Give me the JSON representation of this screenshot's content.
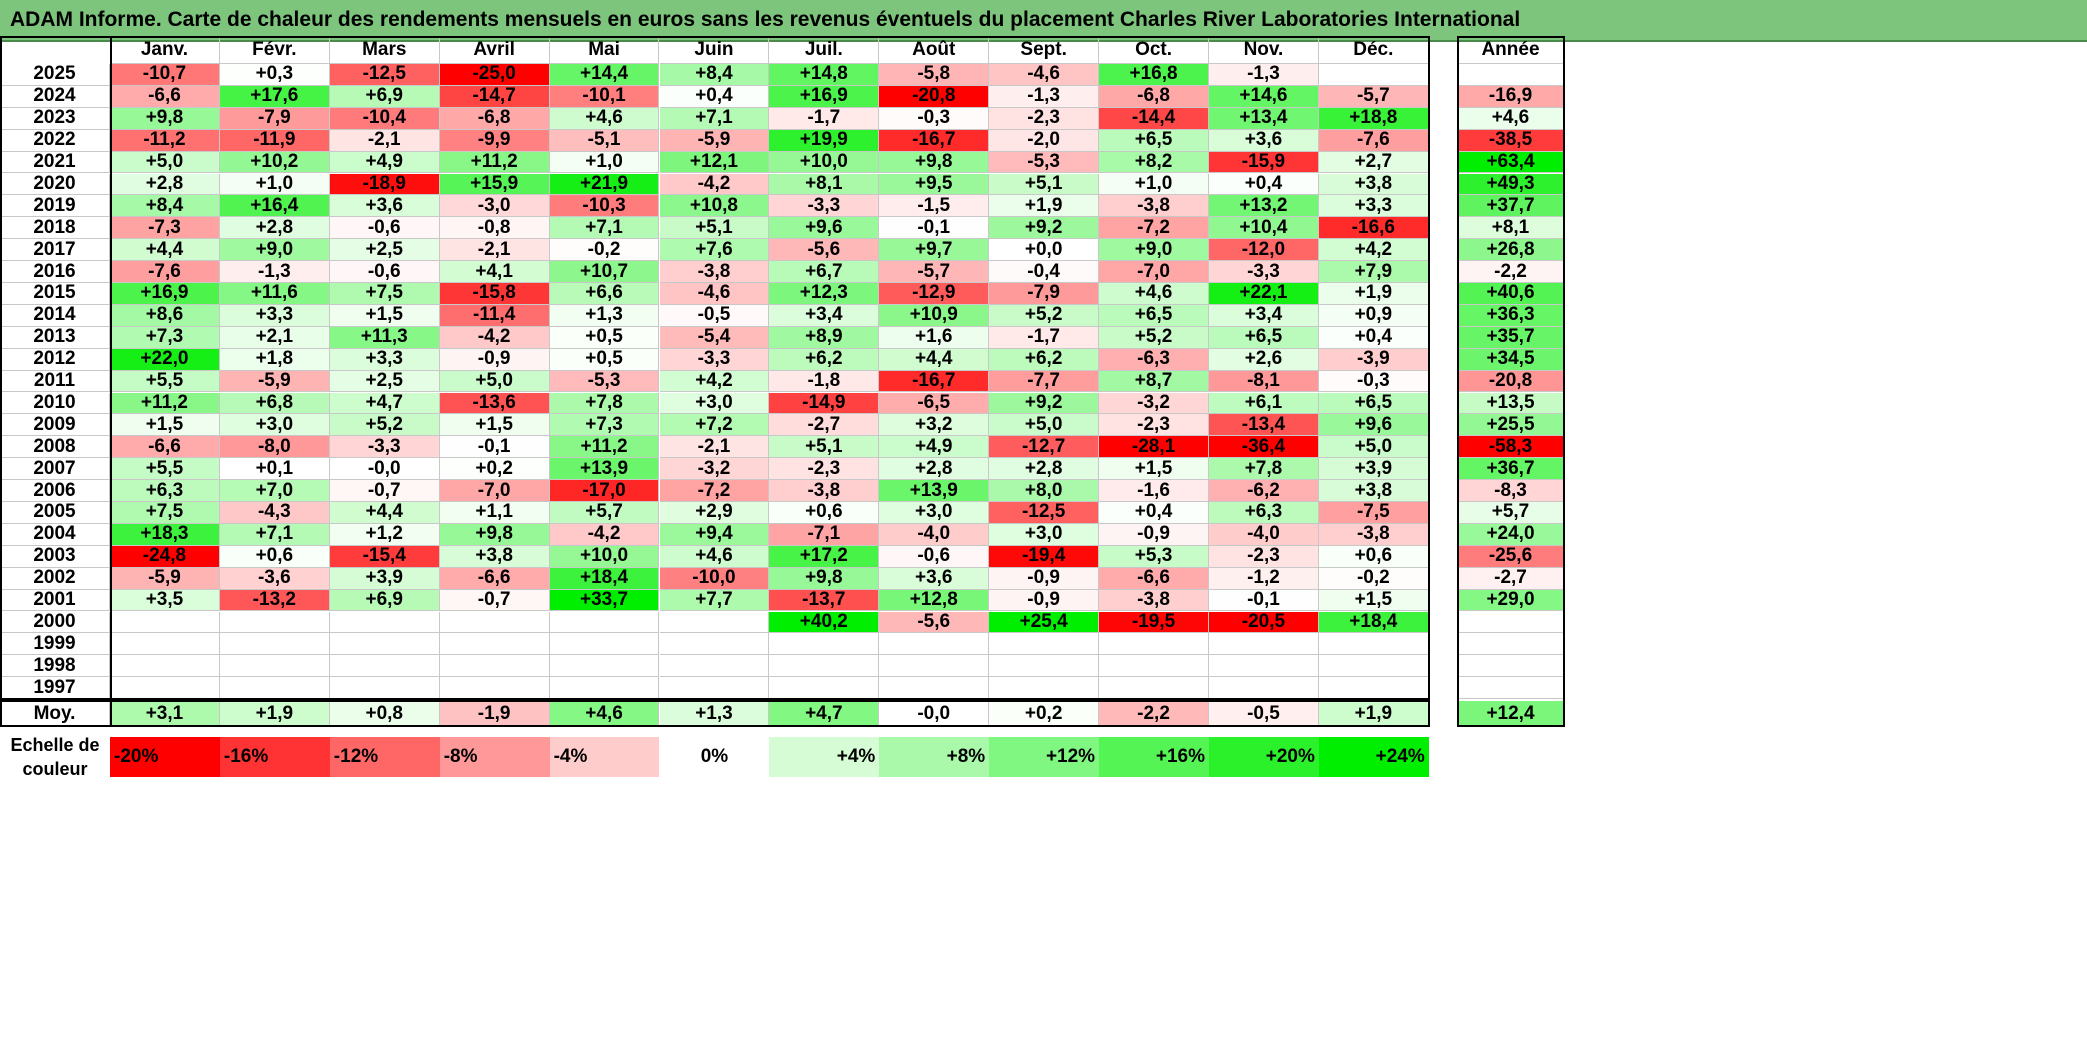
{
  "title": "ADAM Informe. Carte de chaleur des rendements mensuels en euros sans les revenus éventuels du placement Charles River Laboratories International",
  "chart_data": {
    "type": "heatmap",
    "title": "ADAM Informe. Carte de chaleur des rendements mensuels en euros sans les revenus éventuels du placement Charles River Laboratories International",
    "columns": [
      "Janv.",
      "Févr.",
      "Mars",
      "Avril",
      "Mai",
      "Juin",
      "Juil.",
      "Août",
      "Sept.",
      "Oct.",
      "Nov.",
      "Déc."
    ],
    "annual_label": "Année",
    "rows": [
      {
        "year": "2025",
        "values": [
          "-10,7",
          "+0,3",
          "-12,5",
          "-25,0",
          "+14,4",
          "+8,4",
          "+14,8",
          "-5,8",
          "-4,6",
          "+16,8",
          "-1,3",
          ""
        ],
        "annual": ""
      },
      {
        "year": "2024",
        "values": [
          "-6,6",
          "+17,6",
          "+6,9",
          "-14,7",
          "-10,1",
          "+0,4",
          "+16,9",
          "-20,8",
          "-1,3",
          "-6,8",
          "+14,6",
          "-5,7"
        ],
        "annual": "-16,9"
      },
      {
        "year": "2023",
        "values": [
          "+9,8",
          "-7,9",
          "-10,4",
          "-6,8",
          "+4,6",
          "+7,1",
          "-1,7",
          "-0,3",
          "-2,3",
          "-14,4",
          "+13,4",
          "+18,8"
        ],
        "annual": "+4,6"
      },
      {
        "year": "2022",
        "values": [
          "-11,2",
          "-11,9",
          "-2,1",
          "-9,9",
          "-5,1",
          "-5,9",
          "+19,9",
          "-16,7",
          "-2,0",
          "+6,5",
          "+3,6",
          "-7,6"
        ],
        "annual": "-38,5"
      },
      {
        "year": "2021",
        "values": [
          "+5,0",
          "+10,2",
          "+4,9",
          "+11,2",
          "+1,0",
          "+12,1",
          "+10,0",
          "+9,8",
          "-5,3",
          "+8,2",
          "-15,9",
          "+2,7"
        ],
        "annual": "+63,4"
      },
      {
        "year": "2020",
        "values": [
          "+2,8",
          "+1,0",
          "-18,9",
          "+15,9",
          "+21,9",
          "-4,2",
          "+8,1",
          "+9,5",
          "+5,1",
          "+1,0",
          "+0,4",
          "+3,8"
        ],
        "annual": "+49,3"
      },
      {
        "year": "2019",
        "values": [
          "+8,4",
          "+16,4",
          "+3,6",
          "-3,0",
          "-10,3",
          "+10,8",
          "-3,3",
          "-1,5",
          "+1,9",
          "-3,8",
          "+13,2",
          "+3,3"
        ],
        "annual": "+37,7"
      },
      {
        "year": "2018",
        "values": [
          "-7,3",
          "+2,8",
          "-0,6",
          "-0,8",
          "+7,1",
          "+5,1",
          "+9,6",
          "-0,1",
          "+9,2",
          "-7,2",
          "+10,4",
          "-16,6"
        ],
        "annual": "+8,1"
      },
      {
        "year": "2017",
        "values": [
          "+4,4",
          "+9,0",
          "+2,5",
          "-2,1",
          "-0,2",
          "+7,6",
          "-5,6",
          "+9,7",
          "+0,0",
          "+9,0",
          "-12,0",
          "+4,2"
        ],
        "annual": "+26,8"
      },
      {
        "year": "2016",
        "values": [
          "-7,6",
          "-1,3",
          "-0,6",
          "+4,1",
          "+10,7",
          "-3,8",
          "+6,7",
          "-5,7",
          "-0,4",
          "-7,0",
          "-3,3",
          "+7,9"
        ],
        "annual": "-2,2"
      },
      {
        "year": "2015",
        "values": [
          "+16,9",
          "+11,6",
          "+7,5",
          "-15,8",
          "+6,6",
          "-4,6",
          "+12,3",
          "-12,9",
          "-7,9",
          "+4,6",
          "+22,1",
          "+1,9"
        ],
        "annual": "+40,6"
      },
      {
        "year": "2014",
        "values": [
          "+8,6",
          "+3,3",
          "+1,5",
          "-11,4",
          "+1,3",
          "-0,5",
          "+3,4",
          "+10,9",
          "+5,2",
          "+6,5",
          "+3,4",
          "+0,9"
        ],
        "annual": "+36,3"
      },
      {
        "year": "2013",
        "values": [
          "+7,3",
          "+2,1",
          "+11,3",
          "-4,2",
          "+0,5",
          "-5,4",
          "+8,9",
          "+1,6",
          "-1,7",
          "+5,2",
          "+6,5",
          "+0,4"
        ],
        "annual": "+35,7"
      },
      {
        "year": "2012",
        "values": [
          "+22,0",
          "+1,8",
          "+3,3",
          "-0,9",
          "+0,5",
          "-3,3",
          "+6,2",
          "+4,4",
          "+6,2",
          "-6,3",
          "+2,6",
          "-3,9"
        ],
        "annual": "+34,5"
      },
      {
        "year": "2011",
        "values": [
          "+5,5",
          "-5,9",
          "+2,5",
          "+5,0",
          "-5,3",
          "+4,2",
          "-1,8",
          "-16,7",
          "-7,7",
          "+8,7",
          "-8,1",
          "-0,3"
        ],
        "annual": "-20,8"
      },
      {
        "year": "2010",
        "values": [
          "+11,2",
          "+6,8",
          "+4,7",
          "-13,6",
          "+7,8",
          "+3,0",
          "-14,9",
          "-6,5",
          "+9,2",
          "-3,2",
          "+6,1",
          "+6,5"
        ],
        "annual": "+13,5"
      },
      {
        "year": "2009",
        "values": [
          "+1,5",
          "+3,0",
          "+5,2",
          "+1,5",
          "+7,3",
          "+7,2",
          "-2,7",
          "+3,2",
          "+5,0",
          "-2,3",
          "-13,4",
          "+9,6"
        ],
        "annual": "+25,5"
      },
      {
        "year": "2008",
        "values": [
          "-6,6",
          "-8,0",
          "-3,3",
          "-0,1",
          "+11,2",
          "-2,1",
          "+5,1",
          "+4,9",
          "-12,7",
          "-28,1",
          "-36,4",
          "+5,0"
        ],
        "annual": "-58,3"
      },
      {
        "year": "2007",
        "values": [
          "+5,5",
          "+0,1",
          "-0,0",
          "+0,2",
          "+13,9",
          "-3,2",
          "-2,3",
          "+2,8",
          "+2,8",
          "+1,5",
          "+7,8",
          "+3,9"
        ],
        "annual": "+36,7"
      },
      {
        "year": "2006",
        "values": [
          "+6,3",
          "+7,0",
          "-0,7",
          "-7,0",
          "-17,0",
          "-7,2",
          "-3,8",
          "+13,9",
          "+8,0",
          "-1,6",
          "-6,2",
          "+3,8"
        ],
        "annual": "-8,3"
      },
      {
        "year": "2005",
        "values": [
          "+7,5",
          "-4,3",
          "+4,4",
          "+1,1",
          "+5,7",
          "+2,9",
          "+0,6",
          "+3,0",
          "-12,5",
          "+0,4",
          "+6,3",
          "-7,5"
        ],
        "annual": "+5,7"
      },
      {
        "year": "2004",
        "values": [
          "+18,3",
          "+7,1",
          "+1,2",
          "+9,8",
          "-4,2",
          "+9,4",
          "-7,1",
          "-4,0",
          "+3,0",
          "-0,9",
          "-4,0",
          "-3,8"
        ],
        "annual": "+24,0"
      },
      {
        "year": "2003",
        "values": [
          "-24,8",
          "+0,6",
          "-15,4",
          "+3,8",
          "+10,0",
          "+4,6",
          "+17,2",
          "-0,6",
          "-19,4",
          "+5,3",
          "-2,3",
          "+0,6"
        ],
        "annual": "-25,6"
      },
      {
        "year": "2002",
        "values": [
          "-5,9",
          "-3,6",
          "+3,9",
          "-6,6",
          "+18,4",
          "-10,0",
          "+9,8",
          "+3,6",
          "-0,9",
          "-6,6",
          "-1,2",
          "-0,2"
        ],
        "annual": "-2,7"
      },
      {
        "year": "2001",
        "values": [
          "+3,5",
          "-13,2",
          "+6,9",
          "-0,7",
          "+33,7",
          "+7,7",
          "-13,7",
          "+12,8",
          "-0,9",
          "-3,8",
          "-0,1",
          "+1,5"
        ],
        "annual": "+29,0"
      },
      {
        "year": "2000",
        "values": [
          "",
          "",
          "",
          "",
          "",
          "",
          "+40,2",
          "-5,6",
          "+25,4",
          "-19,5",
          "-20,5",
          "+18,4"
        ],
        "annual": ""
      },
      {
        "year": "1999",
        "values": [
          "",
          "",
          "",
          "",
          "",
          "",
          "",
          "",
          "",
          "",
          "",
          ""
        ],
        "annual": ""
      },
      {
        "year": "1998",
        "values": [
          "",
          "",
          "",
          "",
          "",
          "",
          "",
          "",
          "",
          "",
          "",
          ""
        ],
        "annual": ""
      },
      {
        "year": "1997",
        "values": [
          "",
          "",
          "",
          "",
          "",
          "",
          "",
          "",
          "",
          "",
          "",
          ""
        ],
        "annual": ""
      }
    ],
    "average": {
      "label": "Moy.",
      "values": [
        "+3,1",
        "+1,9",
        "+0,8",
        "-1,9",
        "+4,6",
        "+1,3",
        "+4,7",
        "-0,0",
        "+0,2",
        "-2,2",
        "-0,5",
        "+1,9"
      ],
      "annual": "+12,4"
    },
    "scale": {
      "label": "Echelle de couleur",
      "stops": [
        {
          "label": "-20%",
          "value": -20
        },
        {
          "label": "-16%",
          "value": -16
        },
        {
          "label": "-12%",
          "value": -12
        },
        {
          "label": "-8%",
          "value": -8
        },
        {
          "label": "-4%",
          "value": -4
        },
        {
          "label": "0%",
          "value": 0
        },
        {
          "label": "+4%",
          "value": 4
        },
        {
          "label": "+8%",
          "value": 8
        },
        {
          "label": "+12%",
          "value": 12
        },
        {
          "label": "+16%",
          "value": 16
        },
        {
          "label": "+20%",
          "value": 20
        },
        {
          "label": "+24%",
          "value": 24
        }
      ]
    },
    "colors": {
      "negative": "#ff0000",
      "neutral": "#ffffff",
      "positive": "#00ee00",
      "title_bg": "#7dc47d"
    }
  }
}
